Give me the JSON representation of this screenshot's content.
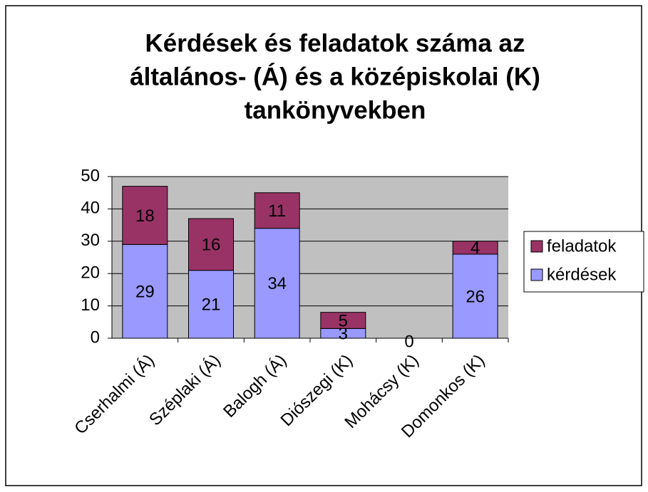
{
  "chart_data": {
    "type": "stacked_bar",
    "title": [
      "Kérdések és feladatok száma az",
      "általános- (Á) és a középiskolai (K)",
      "tankönyvekben"
    ],
    "categories": [
      "Cserhalmi (Á)",
      "Széplaki (Á)",
      "Balogh (Á)",
      "Diószegi (K)",
      "Mohácsy (K)",
      "Domonkos (K)"
    ],
    "series": [
      {
        "name": "kérdések",
        "color": "#9999ff",
        "values": [
          29,
          21,
          34,
          3,
          0,
          26
        ]
      },
      {
        "name": "feladatok",
        "color": "#993366",
        "values": [
          18,
          16,
          11,
          5,
          null,
          4
        ]
      }
    ],
    "ylim": [
      0,
      50
    ],
    "yticks": [
      0,
      10,
      20,
      30,
      40,
      50
    ],
    "grid": true,
    "legend": "right"
  }
}
